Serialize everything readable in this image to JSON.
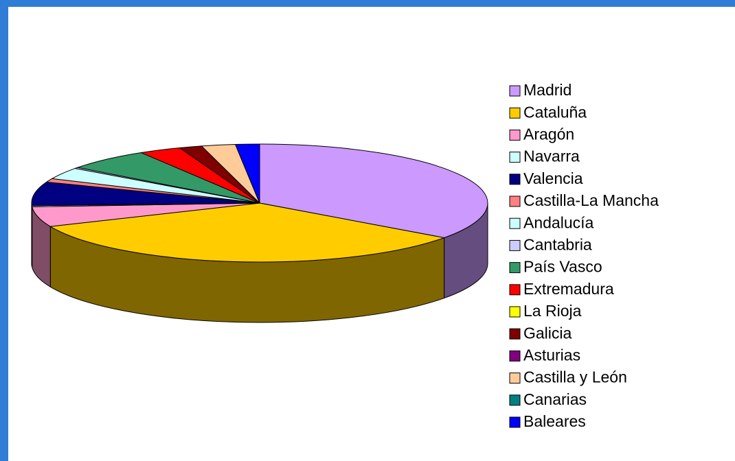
{
  "chart_data": {
    "type": "pie3d",
    "categories": [
      "Madrid",
      "Cataluña",
      "Aragón",
      "Navarra",
      "Valencia",
      "Castilla-La Mancha",
      "Andalucía",
      "Cantabria",
      "País Vasco",
      "Extremadura",
      "La Rioja",
      "Galicia",
      "Asturias",
      "Castilla y León",
      "Canarias",
      "Baleares"
    ],
    "values": [
      35,
      33.5,
      5.5,
      0.3,
      6.5,
      1,
      3.2,
      0.3,
      6,
      3,
      0,
      1.6,
      0,
      2.4,
      0,
      1.7
    ],
    "colors": [
      "#cc99ff",
      "#ffcc00",
      "#ff99cc",
      "#ccffff",
      "#000080",
      "#ff8080",
      "#ccffff",
      "#ccccff",
      "#339966",
      "#ff0000",
      "#ffff00",
      "#800000",
      "#800080",
      "#ffcc99",
      "#008080",
      "#0000ff"
    ],
    "legend": "right"
  }
}
